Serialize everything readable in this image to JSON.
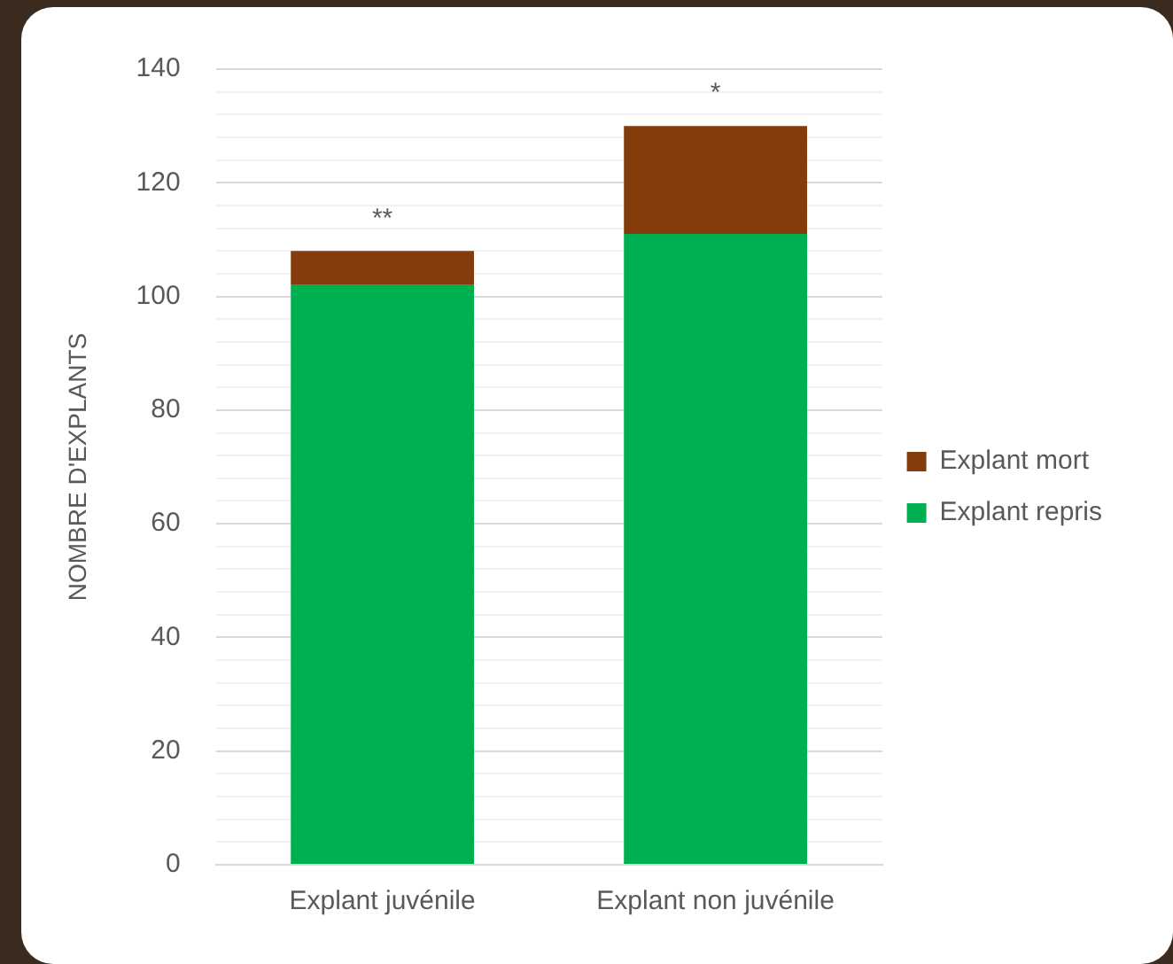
{
  "chart_data": {
    "type": "bar",
    "stacked": true,
    "ylabel": "NOMBRE D'EXPLANTS",
    "categories": [
      "Explant juvénile",
      "Explant non juvénile"
    ],
    "series": [
      {
        "name": "Explant repris",
        "color": "#00b050",
        "values": [
          102,
          111
        ]
      },
      {
        "name": "Explant mort",
        "color": "#843c0c",
        "values": [
          6,
          19
        ]
      }
    ],
    "ylim": [
      0,
      140
    ],
    "yticks": [
      0,
      {
        "value": 4,
        "label": null
      },
      {
        "value": 8,
        "label": null
      },
      {
        "value": 12,
        "label": null
      },
      {
        "value": 16,
        "label": null
      },
      20,
      {
        "value": 24,
        "label": null
      },
      {
        "value": 28,
        "label": null
      },
      {
        "value": 32,
        "label": null
      },
      {
        "value": 36,
        "label": null
      },
      40,
      {
        "value": 44,
        "label": null
      },
      {
        "value": 48,
        "label": null
      },
      {
        "value": 52,
        "label": null
      },
      {
        "value": 56,
        "label": null
      },
      60,
      {
        "value": 64,
        "label": null
      },
      {
        "value": 68,
        "label": null
      },
      {
        "value": 72,
        "label": null
      },
      {
        "value": 76,
        "label": null
      },
      80,
      {
        "value": 84,
        "label": null
      },
      {
        "value": 88,
        "label": null
      },
      {
        "value": 92,
        "label": null
      },
      {
        "value": 96,
        "label": null
      },
      100,
      {
        "value": 104,
        "label": null
      },
      {
        "value": 108,
        "label": null
      },
      {
        "value": 112,
        "label": null
      },
      {
        "value": 116,
        "label": null
      },
      120,
      {
        "value": 124,
        "label": null
      },
      {
        "value": 128,
        "label": null
      },
      {
        "value": 132,
        "label": null
      },
      {
        "value": 136,
        "label": null
      },
      140
    ],
    "grid": "y",
    "legend": "right",
    "annotations": [
      "**",
      "*"
    ]
  }
}
